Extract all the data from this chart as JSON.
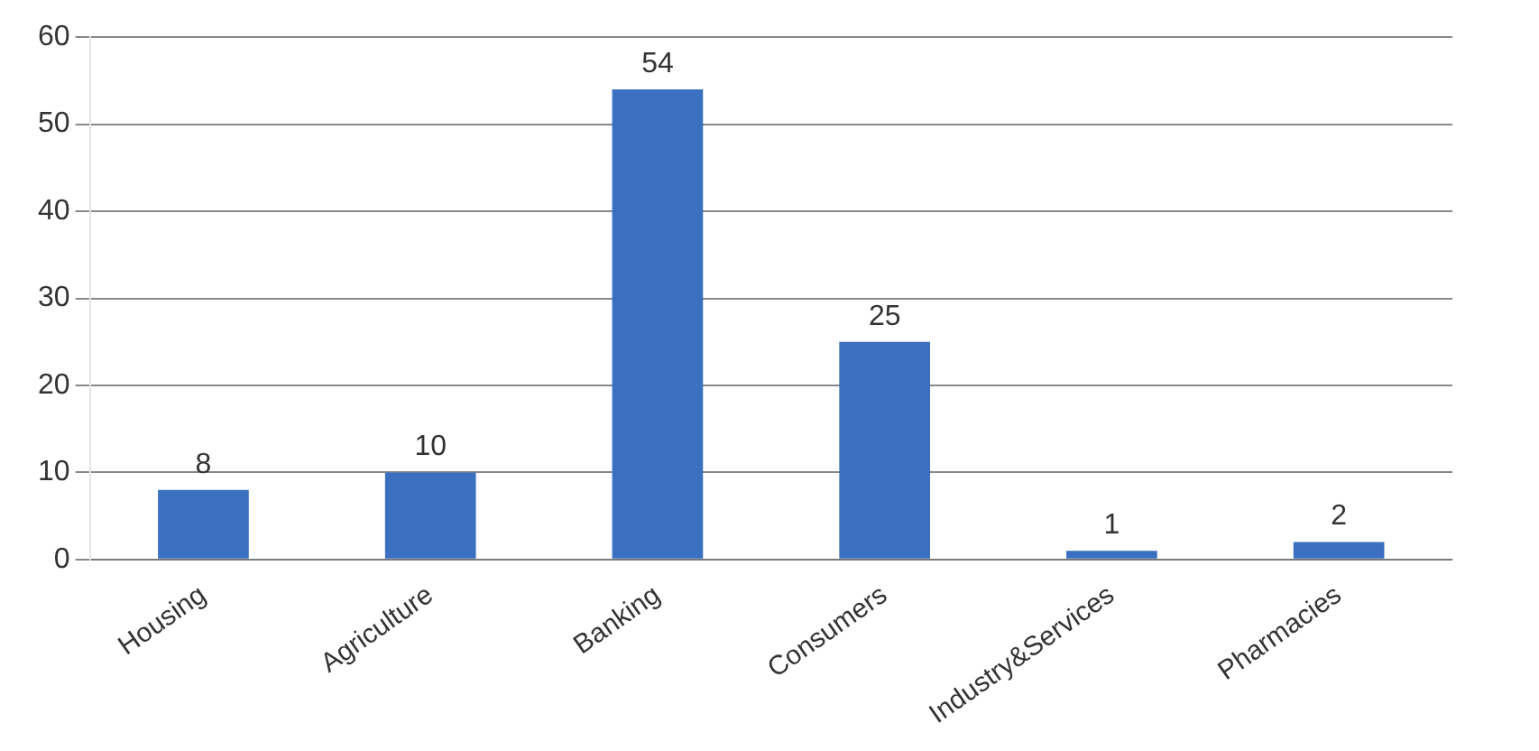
{
  "chart_data": {
    "type": "bar",
    "categories": [
      "Housing",
      "Agriculture",
      "Banking",
      "Consumers",
      "Industry&Services",
      "Pharmacies"
    ],
    "values": [
      8,
      10,
      54,
      25,
      1,
      2
    ],
    "color": "#3b6fc0",
    "ylim": [
      0,
      60
    ],
    "yticks": [
      0,
      10,
      20,
      30,
      40,
      50,
      60
    ],
    "grid": "y",
    "data_labels": true,
    "legend": false
  }
}
